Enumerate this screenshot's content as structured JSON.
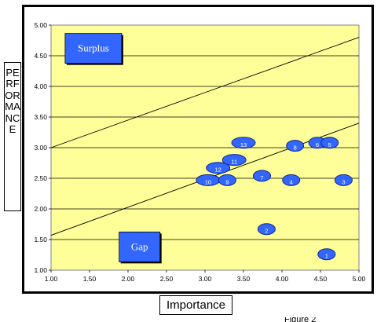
{
  "chart_data": {
    "type": "scatter",
    "title": "",
    "xlabel": "Importance",
    "ylabel": "PERFORMANCE",
    "xlim": [
      1.0,
      5.0
    ],
    "ylim": [
      1.0,
      5.0
    ],
    "x_ticks": [
      "1.00",
      "1.50",
      "2.00",
      "2.50",
      "3.00",
      "3.50",
      "4.00",
      "4.50",
      "5.00"
    ],
    "y_ticks": [
      "1.00",
      "1.50",
      "2.00",
      "2.50",
      "3.00",
      "3.50",
      "4.00",
      "4.50",
      "5.00"
    ],
    "grid": "horizontal",
    "background_color": "#ffff99",
    "bubble_color": "#3366ff",
    "reference_lines": [
      {
        "x1": 1.0,
        "y1": 3.0,
        "x2": 5.0,
        "y2": 4.8
      },
      {
        "x1": 1.0,
        "y1": 1.57,
        "x2": 5.0,
        "y2": 3.4
      }
    ],
    "regions": [
      {
        "label": "Surplus",
        "x": 1.55,
        "y": 4.62
      },
      {
        "label": "Gap",
        "x": 2.15,
        "y": 1.38
      }
    ],
    "points": [
      {
        "label": "10",
        "x": 3.04,
        "y": 2.47
      },
      {
        "label": "9",
        "x": 3.29,
        "y": 2.47
      },
      {
        "label": "12",
        "x": 3.17,
        "y": 2.67
      },
      {
        "label": "11",
        "x": 3.38,
        "y": 2.8
      },
      {
        "label": "13",
        "x": 3.5,
        "y": 3.08
      },
      {
        "label": "7",
        "x": 3.74,
        "y": 2.54
      },
      {
        "label": "2",
        "x": 3.8,
        "y": 1.67
      },
      {
        "label": "8",
        "x": 4.17,
        "y": 3.03
      },
      {
        "label": "4",
        "x": 4.12,
        "y": 2.47
      },
      {
        "label": "6",
        "x": 4.46,
        "y": 3.08
      },
      {
        "label": "5",
        "x": 4.62,
        "y": 3.08
      },
      {
        "label": "3",
        "x": 4.8,
        "y": 2.47
      },
      {
        "label": "1",
        "x": 4.58,
        "y": 1.26
      }
    ]
  },
  "figure_caption": "Figure 2"
}
